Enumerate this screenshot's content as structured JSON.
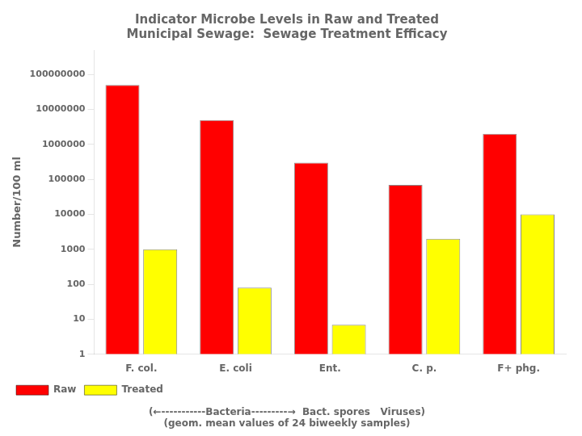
{
  "chart_data": {
    "type": "bar",
    "title": "Indicator Microbe Levels in Raw and Treated\nMunicipal Sewage:  Sewage Treatment Efficacy",
    "y_label": "Number/100 ml",
    "categories": [
      "F. col.",
      "E. coli",
      "Ent.",
      "C. p.",
      "F+ phg."
    ],
    "series": [
      {
        "name": "Raw",
        "color": "#FF0000",
        "values": [
          50000000,
          5000000,
          300000,
          70000,
          2000000
        ]
      },
      {
        "name": "Treated",
        "color": "#FFFF00",
        "values": [
          1000,
          80,
          7,
          2000,
          10000
        ]
      }
    ],
    "log": "y",
    "ylim": [
      1,
      500000000
    ],
    "yticks": [
      1,
      10,
      100,
      1000,
      10000,
      100000,
      1000000,
      10000000,
      100000000
    ],
    "grid": false,
    "legend": "lower left",
    "annotations": [
      "(←-----------Bacteria---------→  Bact. spores   Viruses)",
      "(geom. mean values of 24 biweekly samples)"
    ]
  }
}
